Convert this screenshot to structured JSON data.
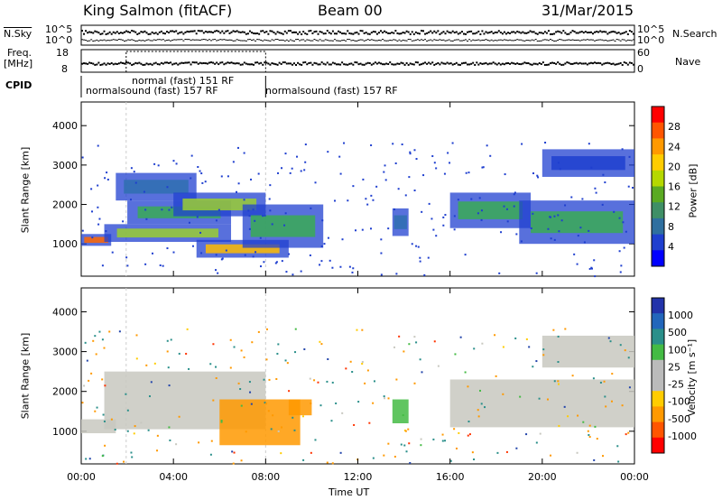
{
  "header": {
    "station": "King Salmon (fitACF)",
    "beam": "Beam 00",
    "date": "31/Mar/2015"
  },
  "strip_labels": {
    "nsky": "N.Sky",
    "freq_line1": "Freq.",
    "freq_line2": "[MHz]",
    "cpid": "CPID",
    "nsearch": "N.Search",
    "nave": "Nave"
  },
  "strip_axes": {
    "nsky_ticks": [
      "10^5",
      "10^0"
    ],
    "nsearch_ticks": [
      "10^5",
      "10^0"
    ],
    "freq_ticks": [
      "18",
      "8"
    ],
    "nave_ticks": [
      "60",
      "0"
    ]
  },
  "cpid_segments": [
    {
      "label": "normalsound (fast) 157 RF",
      "start_h": 0.0,
      "end_h": 8.0
    },
    {
      "label": "normal (fast) 151 RF",
      "start_h": 1.95,
      "end_h": 8.0
    },
    {
      "label": "normalsound (fast) 157 RF",
      "start_h": 8.0,
      "end_h": 24.0
    }
  ],
  "panels": {
    "power": {
      "ylabel": "Slant Range [km]",
      "cbar_label": "Power [dB]",
      "cbar_ticks": [
        "28",
        "24",
        "20",
        "16",
        "12",
        "8",
        "4"
      ],
      "cbar_colors": [
        "#ff0000",
        "#ff5500",
        "#ff9900",
        "#ffcc00",
        "#b5d800",
        "#5aaa22",
        "#3f8f66",
        "#2f6f9f",
        "#1f3fcf",
        "#0000ff"
      ]
    },
    "velocity": {
      "ylabel": "Slant Range [km]",
      "cbar_label": "Velocity [m s⁻¹]",
      "cbar_ticks": [
        "1000",
        "500",
        "100",
        "25",
        "-25",
        "-100",
        "-500",
        "-1000"
      ],
      "cbar_colors": [
        "#2233aa",
        "#2266bb",
        "#2a8f8a",
        "#44bb44",
        "#bbbbbb",
        "#bbbbbb",
        "#ffcc00",
        "#ff9900",
        "#ff5500",
        "#ff0000"
      ]
    }
  },
  "x_axis": {
    "label": "Time UT",
    "ticks": [
      "00:00",
      "04:00",
      "08:00",
      "12:00",
      "16:00",
      "20:00",
      "00:00"
    ]
  },
  "y_axis": {
    "ticks": [
      "1000",
      "2000",
      "3000",
      "4000"
    ]
  },
  "chart_data": {
    "type": "heatmap",
    "title": "King Salmon (fitACF) Beam 00 31/Mar/2015",
    "xlabel": "Time UT",
    "ylabel": "Slant Range [km]",
    "xlim_hours": [
      0,
      24
    ],
    "ylim_km": [
      180,
      4600
    ],
    "power_range_db": [
      0,
      30
    ],
    "velocity_range_ms": [
      -1000,
      1000
    ],
    "power_bands": [
      {
        "t_start": 0.0,
        "t_end": 1.3,
        "r_low": 950,
        "r_high": 1250,
        "power_db": 24
      },
      {
        "t_start": 1.0,
        "t_end": 6.5,
        "r_low": 1050,
        "r_high": 1500,
        "power_db": 16
      },
      {
        "t_start": 2.0,
        "t_end": 6.5,
        "r_low": 1500,
        "r_high": 2100,
        "power_db": 12
      },
      {
        "t_start": 1.5,
        "t_end": 5.0,
        "r_low": 2100,
        "r_high": 2800,
        "power_db": 8
      },
      {
        "t_start": 4.0,
        "t_end": 8.0,
        "r_low": 1700,
        "r_high": 2300,
        "power_db": 16
      },
      {
        "t_start": 5.0,
        "t_end": 9.0,
        "r_low": 650,
        "r_high": 1100,
        "power_db": 20
      },
      {
        "t_start": 7.0,
        "t_end": 10.5,
        "r_low": 900,
        "r_high": 2000,
        "power_db": 12
      },
      {
        "t_start": 13.5,
        "t_end": 14.2,
        "r_low": 1200,
        "r_high": 1900,
        "power_db": 8
      },
      {
        "t_start": 16.0,
        "t_end": 19.5,
        "r_low": 1400,
        "r_high": 2300,
        "power_db": 12
      },
      {
        "t_start": 19.0,
        "t_end": 24.0,
        "r_low": 1000,
        "r_high": 2100,
        "power_db": 12
      },
      {
        "t_start": 20.0,
        "t_end": 24.0,
        "r_low": 2700,
        "r_high": 3400,
        "power_db": 4
      }
    ],
    "velocity_bands": [
      {
        "t_start": 0.0,
        "t_end": 1.5,
        "r_low": 950,
        "r_high": 1300,
        "velocity": 0
      },
      {
        "t_start": 1.0,
        "t_end": 8.0,
        "r_low": 1050,
        "r_high": 2500,
        "velocity": 0
      },
      {
        "t_start": 6.0,
        "t_end": 9.5,
        "r_low": 650,
        "r_high": 1800,
        "velocity": -300
      },
      {
        "t_start": 9.0,
        "t_end": 10.0,
        "r_low": 1400,
        "r_high": 1800,
        "velocity": -300
      },
      {
        "t_start": 13.5,
        "t_end": 14.2,
        "r_low": 1200,
        "r_high": 1800,
        "velocity": 50
      },
      {
        "t_start": 16.0,
        "t_end": 24.0,
        "r_low": 1100,
        "r_high": 2300,
        "velocity": 0
      },
      {
        "t_start": 20.0,
        "t_end": 24.0,
        "r_low": 2600,
        "r_high": 3400,
        "velocity": 0
      }
    ]
  }
}
